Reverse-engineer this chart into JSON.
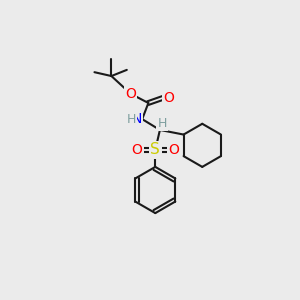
{
  "bg_color": "#ebebeb",
  "bond_color": "#1a1a1a",
  "line_width": 1.5,
  "atom_colors": {
    "O": "#ff0000",
    "N": "#0000ff",
    "S": "#cccc00",
    "H": "#7f9f9f",
    "C": "#1a1a1a"
  },
  "font_size": 10
}
